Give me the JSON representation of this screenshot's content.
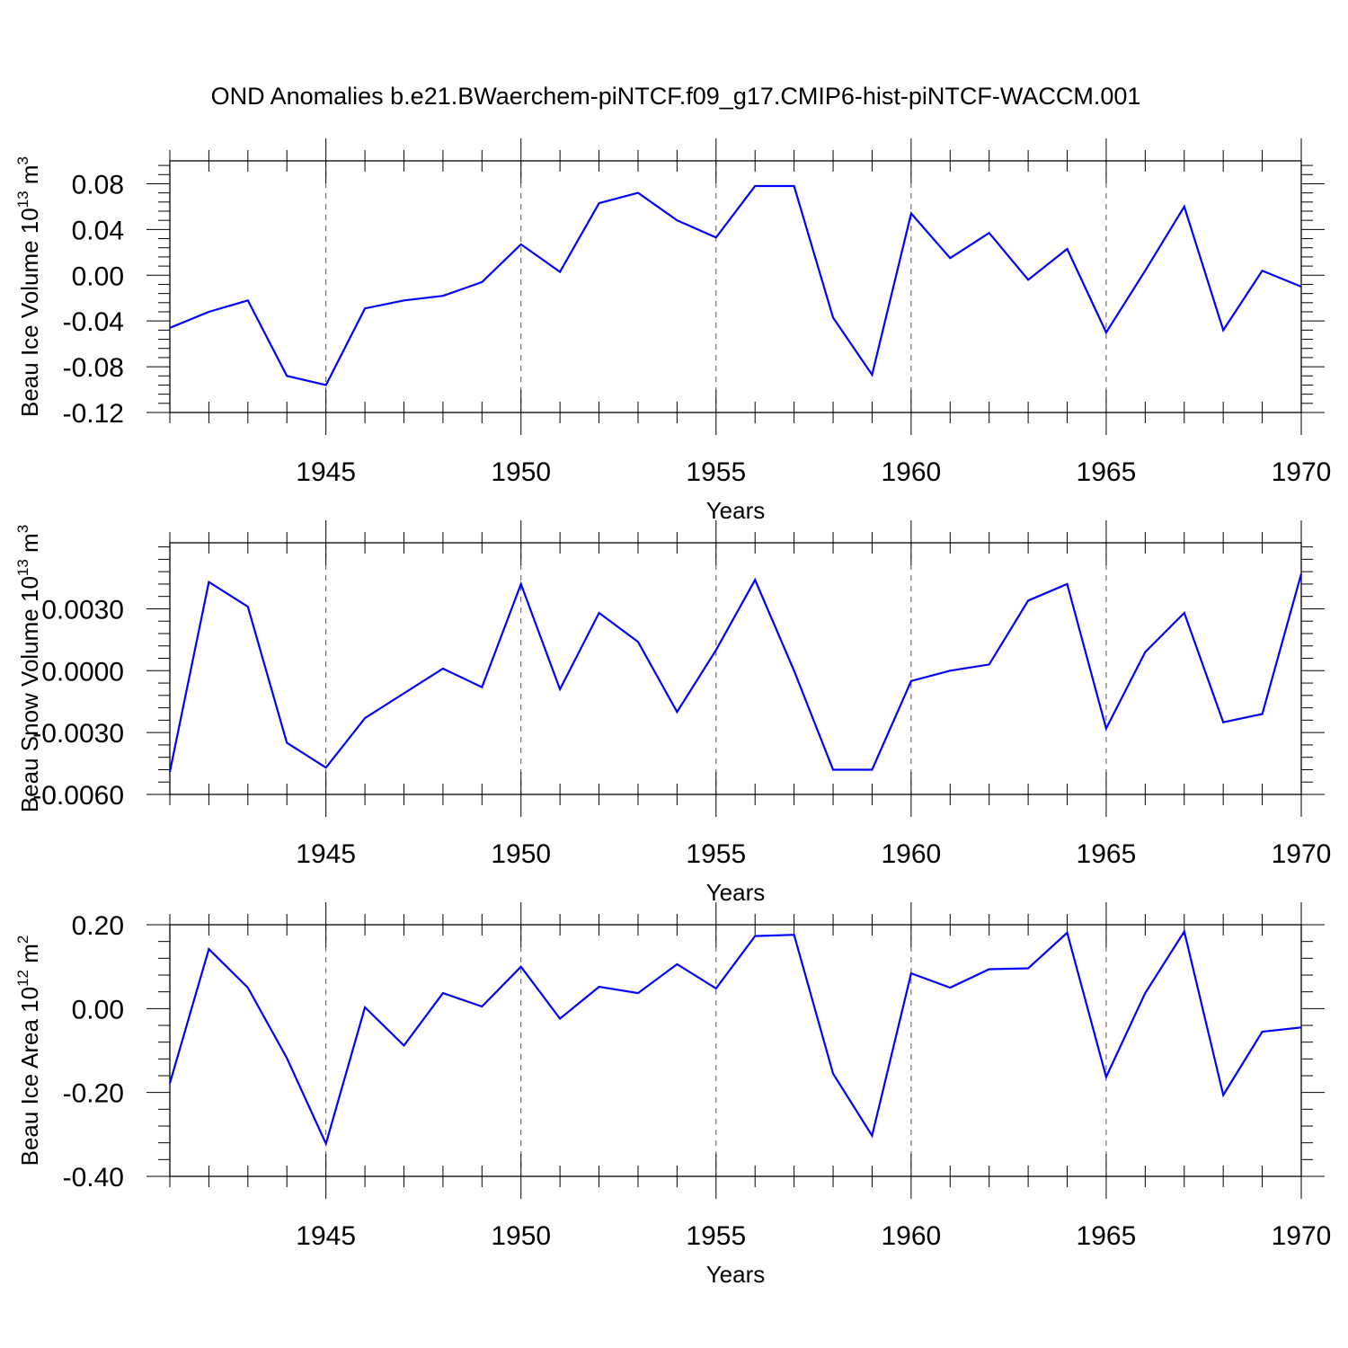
{
  "title": "OND Anomalies b.e21.BWaerchem-piNTCF.f09_g17.CMIP6-hist-piNTCF-WACCM.001",
  "colors": {
    "line": "#0000ff",
    "axis": "#000000",
    "grid": "#555555"
  },
  "chart_data": [
    {
      "type": "line",
      "title": "OND Anomalies b.e21.BWaerchem-piNTCF.f09_g17.CMIP6-hist-piNTCF-WACCM.001",
      "ylabel_main": "Beau Ice Volume 10",
      "ylabel_exp": "13",
      "ylabel_unit": " m",
      "ylabel_unit_exp": "3",
      "xlabel": "Years",
      "xlim": [
        1941,
        1970
      ],
      "ylim": [
        -0.12,
        0.1
      ],
      "xticks": [
        1945,
        1950,
        1955,
        1960,
        1965,
        1970
      ],
      "xtick_labels": [
        "1945",
        "1950",
        "1955",
        "1960",
        "1965",
        "1970"
      ],
      "yticks": [
        -0.12,
        -0.08,
        -0.04,
        0.0,
        0.04,
        0.08
      ],
      "ytick_labels": [
        "-0.12",
        "-0.08",
        "-0.04",
        "0.00",
        "0.04",
        "0.08"
      ],
      "x": [
        1941,
        1942,
        1943,
        1944,
        1945,
        1946,
        1947,
        1948,
        1949,
        1950,
        1951,
        1952,
        1953,
        1954,
        1955,
        1956,
        1957,
        1958,
        1959,
        1960,
        1961,
        1962,
        1963,
        1964,
        1965,
        1966,
        1967,
        1968,
        1969,
        1970
      ],
      "series": [
        {
          "name": "Beau Ice Volume",
          "values": [
            -0.046,
            -0.032,
            -0.022,
            -0.088,
            -0.096,
            -0.029,
            -0.022,
            -0.018,
            -0.006,
            0.027,
            0.003,
            0.063,
            0.072,
            0.048,
            0.033,
            0.078,
            0.078,
            -0.037,
            -0.087,
            0.054,
            0.015,
            0.037,
            -0.004,
            0.023,
            -0.05,
            0.004,
            0.06,
            -0.048,
            0.004,
            -0.01
          ]
        }
      ]
    },
    {
      "type": "line",
      "ylabel_main": "Beau Snow Volume 10",
      "ylabel_exp": "13",
      "ylabel_unit": " m",
      "ylabel_unit_exp": "3",
      "xlabel": "Years",
      "xlim": [
        1941,
        1970
      ],
      "ylim": [
        -0.006,
        0.0062
      ],
      "xticks": [
        1945,
        1950,
        1955,
        1960,
        1965,
        1970
      ],
      "xtick_labels": [
        "1945",
        "1950",
        "1955",
        "1960",
        "1965",
        "1970"
      ],
      "yticks": [
        -0.006,
        -0.003,
        0.0,
        0.003
      ],
      "ytick_labels": [
        "-0.0060",
        "-0.0030",
        "0.0000",
        "0.0030"
      ],
      "x": [
        1941,
        1942,
        1943,
        1944,
        1945,
        1946,
        1947,
        1948,
        1949,
        1950,
        1951,
        1952,
        1953,
        1954,
        1955,
        1956,
        1957,
        1958,
        1959,
        1960,
        1961,
        1962,
        1963,
        1964,
        1965,
        1966,
        1967,
        1968,
        1969,
        1970
      ],
      "series": [
        {
          "name": "Beau Snow Volume",
          "values": [
            -0.0049,
            0.0043,
            0.0031,
            -0.0035,
            -0.0047,
            -0.0023,
            -0.0011,
            0.0001,
            -0.0008,
            0.0042,
            -0.0009,
            0.0028,
            0.0014,
            -0.002,
            0.001,
            0.0044,
            0.0,
            -0.0048,
            -0.0048,
            -0.0005,
            0.0,
            0.0003,
            0.0034,
            0.0042,
            -0.0028,
            0.0009,
            0.0028,
            -0.0025,
            -0.0021,
            0.0047
          ]
        }
      ]
    },
    {
      "type": "line",
      "ylabel_main": "Beau Ice Area 10",
      "ylabel_exp": "12",
      "ylabel_unit": " m",
      "ylabel_unit_exp": "2",
      "xlabel": "Years",
      "xlim": [
        1941,
        1970
      ],
      "ylim": [
        -0.4,
        0.2
      ],
      "xticks": [
        1945,
        1950,
        1955,
        1960,
        1965,
        1970
      ],
      "xtick_labels": [
        "1945",
        "1950",
        "1955",
        "1960",
        "1965",
        "1970"
      ],
      "yticks": [
        -0.4,
        -0.2,
        0.0,
        0.2
      ],
      "ytick_labels": [
        "-0.40",
        "-0.20",
        "0.00",
        "0.20"
      ],
      "x": [
        1941,
        1942,
        1943,
        1944,
        1945,
        1946,
        1947,
        1948,
        1949,
        1950,
        1951,
        1952,
        1953,
        1954,
        1955,
        1956,
        1957,
        1958,
        1959,
        1960,
        1961,
        1962,
        1963,
        1964,
        1965,
        1966,
        1967,
        1968,
        1969,
        1970
      ],
      "series": [
        {
          "name": "Beau Ice Area",
          "values": [
            -0.178,
            0.142,
            0.05,
            -0.118,
            -0.322,
            0.003,
            -0.088,
            0.037,
            0.005,
            0.1,
            -0.024,
            0.052,
            0.037,
            0.106,
            0.048,
            0.173,
            0.176,
            -0.155,
            -0.303,
            0.084,
            0.05,
            0.094,
            0.096,
            0.181,
            -0.163,
            0.037,
            0.184,
            -0.206,
            -0.055,
            -0.045
          ]
        }
      ]
    }
  ]
}
